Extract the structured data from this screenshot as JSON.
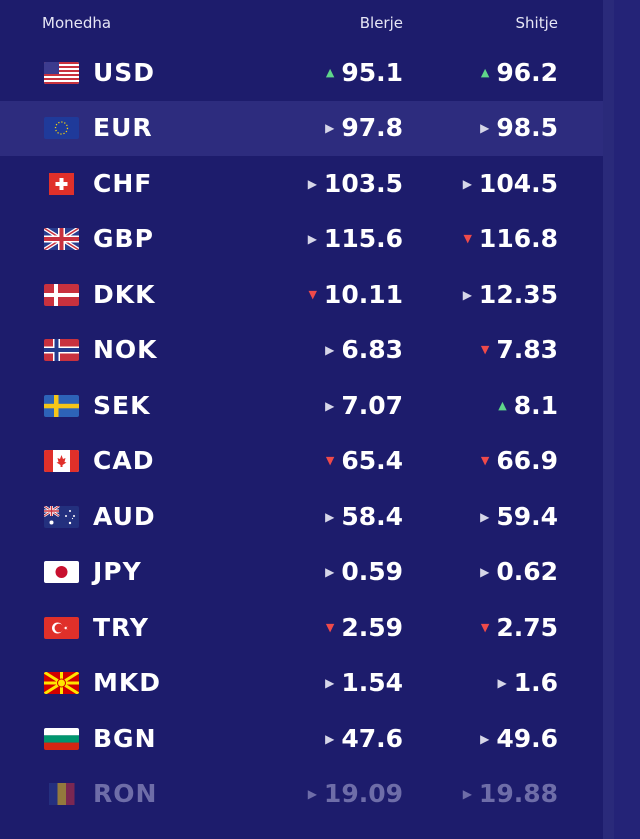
{
  "header": {
    "currency": "Monedha",
    "buy": "Blerje",
    "sell": "Shitje"
  },
  "rows": [
    {
      "code": "USD",
      "buy": "95.1",
      "sell": "96.2",
      "buy_trend": "up",
      "sell_trend": "up",
      "flag": "us-flag-icon"
    },
    {
      "code": "EUR",
      "buy": "97.8",
      "sell": "98.5",
      "buy_trend": "flat",
      "sell_trend": "flat",
      "flag": "eu-flag-icon"
    },
    {
      "code": "CHF",
      "buy": "103.5",
      "sell": "104.5",
      "buy_trend": "flat",
      "sell_trend": "flat",
      "flag": "ch-flag-icon"
    },
    {
      "code": "GBP",
      "buy": "115.6",
      "sell": "116.8",
      "buy_trend": "flat",
      "sell_trend": "down",
      "flag": "gb-flag-icon"
    },
    {
      "code": "DKK",
      "buy": "10.11",
      "sell": "12.35",
      "buy_trend": "down",
      "sell_trend": "flat",
      "flag": "dk-flag-icon"
    },
    {
      "code": "NOK",
      "buy": "6.83",
      "sell": "7.83",
      "buy_trend": "flat",
      "sell_trend": "down",
      "flag": "no-flag-icon"
    },
    {
      "code": "SEK",
      "buy": "7.07",
      "sell": "8.1",
      "buy_trend": "flat",
      "sell_trend": "up",
      "flag": "se-flag-icon"
    },
    {
      "code": "CAD",
      "buy": "65.4",
      "sell": "66.9",
      "buy_trend": "down",
      "sell_trend": "down",
      "flag": "ca-flag-icon"
    },
    {
      "code": "AUD",
      "buy": "58.4",
      "sell": "59.4",
      "buy_trend": "flat",
      "sell_trend": "flat",
      "flag": "au-flag-icon"
    },
    {
      "code": "JPY",
      "buy": "0.59",
      "sell": "0.62",
      "buy_trend": "flat",
      "sell_trend": "flat",
      "flag": "jp-flag-icon"
    },
    {
      "code": "TRY",
      "buy": "2.59",
      "sell": "2.75",
      "buy_trend": "down",
      "sell_trend": "down",
      "flag": "tr-flag-icon"
    },
    {
      "code": "MKD",
      "buy": "1.54",
      "sell": "1.6",
      "buy_trend": "flat",
      "sell_trend": "flat",
      "flag": "mk-flag-icon"
    },
    {
      "code": "BGN",
      "buy": "47.6",
      "sell": "49.6",
      "buy_trend": "flat",
      "sell_trend": "flat",
      "flag": "bg-flag-icon"
    },
    {
      "code": "RON",
      "buy": "19.09",
      "sell": "19.88",
      "buy_trend": "flat",
      "sell_trend": "flat",
      "flag": "ro-flag-icon"
    }
  ],
  "colors": {
    "background": "#1d1c6c",
    "highlight": "#2d2c7e",
    "up": "#5fd68a",
    "down": "#ef4a4a"
  }
}
